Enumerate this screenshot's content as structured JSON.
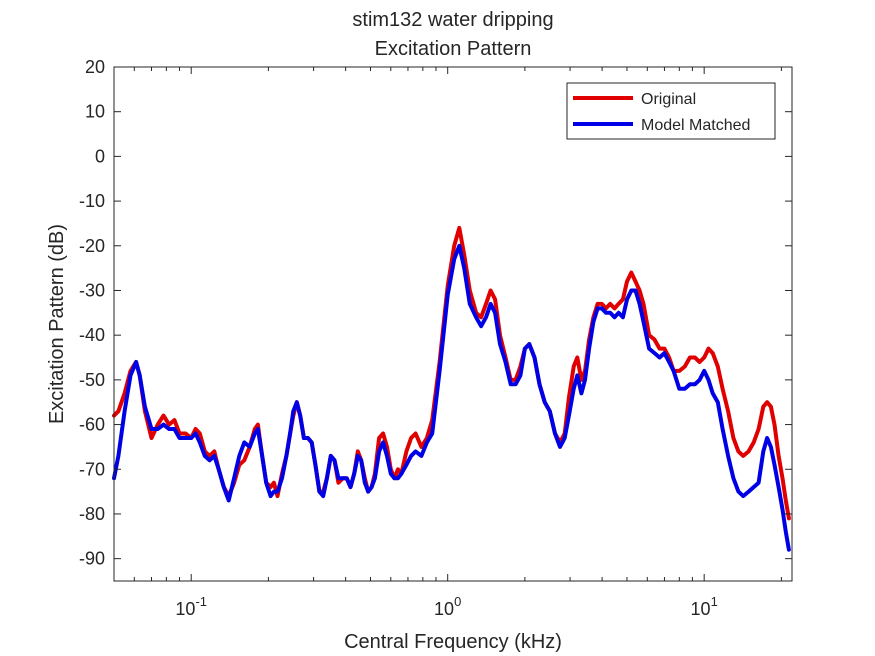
{
  "chart_data": {
    "type": "line",
    "title": "stim132 water dripping",
    "subtitle": "Excitation Pattern",
    "xlabel": "Central Frequency (kHz)",
    "ylabel": "Excitation Pattern (dB)",
    "xscale": "log",
    "xlim": [
      0.05,
      22
    ],
    "ylim": [
      -95,
      20
    ],
    "yticks": [
      20,
      10,
      0,
      -10,
      -20,
      -30,
      -40,
      -50,
      -60,
      -70,
      -80,
      -90
    ],
    "ytick_labels": [
      "20",
      "10",
      "0",
      "-10",
      "-20",
      "-30",
      "-40",
      "-50",
      "-60",
      "-70",
      "-80",
      "-90"
    ],
    "xticks": [
      0.1,
      1,
      10
    ],
    "xtick_base": "10",
    "xtick_exponents": [
      "-1",
      "0",
      "1"
    ],
    "grid": false,
    "legend_position": "top-right",
    "series": [
      {
        "name": "Original",
        "color": "#e00000",
        "points": [
          [
            0.05,
            -58
          ],
          [
            0.052,
            -57
          ],
          [
            0.055,
            -53
          ],
          [
            0.058,
            -48
          ],
          [
            0.061,
            -46
          ],
          [
            0.063,
            -49
          ],
          [
            0.066,
            -57
          ],
          [
            0.07,
            -63
          ],
          [
            0.074,
            -60
          ],
          [
            0.078,
            -58
          ],
          [
            0.082,
            -60
          ],
          [
            0.086,
            -59
          ],
          [
            0.09,
            -62
          ],
          [
            0.095,
            -62
          ],
          [
            0.1,
            -63
          ],
          [
            0.104,
            -61
          ],
          [
            0.108,
            -62
          ],
          [
            0.113,
            -66
          ],
          [
            0.118,
            -67
          ],
          [
            0.123,
            -66
          ],
          [
            0.128,
            -70
          ],
          [
            0.134,
            -74
          ],
          [
            0.14,
            -76
          ],
          [
            0.147,
            -73
          ],
          [
            0.154,
            -69
          ],
          [
            0.161,
            -68
          ],
          [
            0.169,
            -65
          ],
          [
            0.177,
            -61
          ],
          [
            0.182,
            -60
          ],
          [
            0.188,
            -66
          ],
          [
            0.196,
            -73
          ],
          [
            0.204,
            -74
          ],
          [
            0.21,
            -73
          ],
          [
            0.217,
            -76
          ],
          [
            0.226,
            -71
          ],
          [
            0.235,
            -67
          ],
          [
            0.243,
            -62
          ],
          [
            0.25,
            -58
          ],
          [
            0.258,
            -55
          ],
          [
            0.266,
            -58
          ],
          [
            0.275,
            -63
          ],
          [
            0.285,
            -63
          ],
          [
            0.295,
            -64
          ],
          [
            0.305,
            -69
          ],
          [
            0.316,
            -75
          ],
          [
            0.327,
            -75
          ],
          [
            0.338,
            -72
          ],
          [
            0.35,
            -67
          ],
          [
            0.362,
            -68
          ],
          [
            0.375,
            -73
          ],
          [
            0.39,
            -72
          ],
          [
            0.404,
            -72
          ],
          [
            0.418,
            -74
          ],
          [
            0.432,
            -71
          ],
          [
            0.446,
            -66
          ],
          [
            0.46,
            -68
          ],
          [
            0.475,
            -72
          ],
          [
            0.49,
            -75
          ],
          [
            0.505,
            -74
          ],
          [
            0.52,
            -71
          ],
          [
            0.54,
            -63
          ],
          [
            0.56,
            -62
          ],
          [
            0.58,
            -65
          ],
          [
            0.6,
            -70
          ],
          [
            0.62,
            -72
          ],
          [
            0.64,
            -70
          ],
          [
            0.66,
            -71
          ],
          [
            0.69,
            -66
          ],
          [
            0.72,
            -63
          ],
          [
            0.75,
            -62
          ],
          [
            0.79,
            -65
          ],
          [
            0.83,
            -63
          ],
          [
            0.87,
            -59
          ],
          [
            0.93,
            -46
          ],
          [
            1.0,
            -29
          ],
          [
            1.06,
            -20
          ],
          [
            1.11,
            -16
          ],
          [
            1.16,
            -22
          ],
          [
            1.22,
            -30
          ],
          [
            1.29,
            -35
          ],
          [
            1.35,
            -36
          ],
          [
            1.41,
            -33
          ],
          [
            1.47,
            -30
          ],
          [
            1.53,
            -32
          ],
          [
            1.6,
            -40
          ],
          [
            1.68,
            -45
          ],
          [
            1.76,
            -50
          ],
          [
            1.84,
            -50
          ],
          [
            1.92,
            -47
          ],
          [
            2.0,
            -43
          ],
          [
            2.08,
            -42
          ],
          [
            2.18,
            -45
          ],
          [
            2.28,
            -51
          ],
          [
            2.39,
            -55
          ],
          [
            2.5,
            -57
          ],
          [
            2.62,
            -62
          ],
          [
            2.74,
            -64
          ],
          [
            2.86,
            -62
          ],
          [
            2.97,
            -54
          ],
          [
            3.1,
            -47
          ],
          [
            3.2,
            -45
          ],
          [
            3.32,
            -50
          ],
          [
            3.43,
            -48
          ],
          [
            3.56,
            -41
          ],
          [
            3.7,
            -36
          ],
          [
            3.84,
            -33
          ],
          [
            3.99,
            -33
          ],
          [
            4.14,
            -34
          ],
          [
            4.3,
            -33
          ],
          [
            4.47,
            -34
          ],
          [
            4.64,
            -33
          ],
          [
            4.82,
            -32
          ],
          [
            5.0,
            -28
          ],
          [
            5.2,
            -26
          ],
          [
            5.4,
            -28
          ],
          [
            5.6,
            -30
          ],
          [
            5.8,
            -33
          ],
          [
            6.1,
            -40
          ],
          [
            6.4,
            -41
          ],
          [
            6.7,
            -43
          ],
          [
            7.0,
            -43
          ],
          [
            7.3,
            -45
          ],
          [
            7.6,
            -48
          ],
          [
            8.0,
            -48
          ],
          [
            8.4,
            -47
          ],
          [
            8.8,
            -45
          ],
          [
            9.2,
            -45
          ],
          [
            9.6,
            -46
          ],
          [
            10.0,
            -45
          ],
          [
            10.4,
            -43
          ],
          [
            10.8,
            -44
          ],
          [
            11.3,
            -47
          ],
          [
            11.8,
            -52
          ],
          [
            12.4,
            -57
          ],
          [
            13.0,
            -63
          ],
          [
            13.6,
            -66
          ],
          [
            14.2,
            -67
          ],
          [
            14.9,
            -66
          ],
          [
            15.6,
            -64
          ],
          [
            16.3,
            -61
          ],
          [
            17.0,
            -56
          ],
          [
            17.6,
            -55
          ],
          [
            18.2,
            -56
          ],
          [
            18.8,
            -60
          ],
          [
            19.5,
            -67
          ],
          [
            20.2,
            -72
          ],
          [
            20.8,
            -77
          ],
          [
            21.4,
            -81
          ]
        ]
      },
      {
        "name": "Model Matched",
        "color": "#0000e6",
        "points": [
          [
            0.05,
            -72
          ],
          [
            0.052,
            -67
          ],
          [
            0.055,
            -57
          ],
          [
            0.058,
            -49
          ],
          [
            0.061,
            -46
          ],
          [
            0.063,
            -49
          ],
          [
            0.066,
            -56
          ],
          [
            0.07,
            -61
          ],
          [
            0.074,
            -61
          ],
          [
            0.078,
            -60
          ],
          [
            0.082,
            -61
          ],
          [
            0.086,
            -61
          ],
          [
            0.09,
            -63
          ],
          [
            0.095,
            -63
          ],
          [
            0.1,
            -63
          ],
          [
            0.104,
            -62
          ],
          [
            0.108,
            -64
          ],
          [
            0.113,
            -67
          ],
          [
            0.118,
            -68
          ],
          [
            0.123,
            -67
          ],
          [
            0.128,
            -70
          ],
          [
            0.134,
            -74
          ],
          [
            0.14,
            -77
          ],
          [
            0.147,
            -72
          ],
          [
            0.154,
            -67
          ],
          [
            0.161,
            -64
          ],
          [
            0.169,
            -65
          ],
          [
            0.177,
            -62
          ],
          [
            0.182,
            -61
          ],
          [
            0.188,
            -66
          ],
          [
            0.196,
            -73
          ],
          [
            0.204,
            -76
          ],
          [
            0.21,
            -75
          ],
          [
            0.217,
            -75
          ],
          [
            0.226,
            -72
          ],
          [
            0.235,
            -67
          ],
          [
            0.243,
            -62
          ],
          [
            0.25,
            -57
          ],
          [
            0.258,
            -55
          ],
          [
            0.266,
            -58
          ],
          [
            0.275,
            -63
          ],
          [
            0.285,
            -63
          ],
          [
            0.295,
            -64
          ],
          [
            0.305,
            -69
          ],
          [
            0.316,
            -75
          ],
          [
            0.327,
            -76
          ],
          [
            0.338,
            -72
          ],
          [
            0.35,
            -67
          ],
          [
            0.362,
            -68
          ],
          [
            0.375,
            -72
          ],
          [
            0.39,
            -72
          ],
          [
            0.404,
            -72
          ],
          [
            0.418,
            -74
          ],
          [
            0.432,
            -71
          ],
          [
            0.446,
            -67
          ],
          [
            0.46,
            -68
          ],
          [
            0.475,
            -73
          ],
          [
            0.49,
            -75
          ],
          [
            0.505,
            -74
          ],
          [
            0.52,
            -72
          ],
          [
            0.54,
            -66
          ],
          [
            0.56,
            -64
          ],
          [
            0.58,
            -67
          ],
          [
            0.6,
            -71
          ],
          [
            0.62,
            -72
          ],
          [
            0.64,
            -72
          ],
          [
            0.66,
            -71
          ],
          [
            0.69,
            -69
          ],
          [
            0.72,
            -67
          ],
          [
            0.75,
            -66
          ],
          [
            0.79,
            -67
          ],
          [
            0.83,
            -64
          ],
          [
            0.87,
            -62
          ],
          [
            0.93,
            -48
          ],
          [
            1.0,
            -31
          ],
          [
            1.06,
            -23
          ],
          [
            1.11,
            -20
          ],
          [
            1.16,
            -25
          ],
          [
            1.22,
            -33
          ],
          [
            1.29,
            -36
          ],
          [
            1.35,
            -38
          ],
          [
            1.41,
            -36
          ],
          [
            1.47,
            -33
          ],
          [
            1.53,
            -35
          ],
          [
            1.6,
            -42
          ],
          [
            1.68,
            -46
          ],
          [
            1.76,
            -51
          ],
          [
            1.84,
            -51
          ],
          [
            1.92,
            -49
          ],
          [
            2.0,
            -43
          ],
          [
            2.08,
            -42
          ],
          [
            2.18,
            -45
          ],
          [
            2.28,
            -51
          ],
          [
            2.39,
            -55
          ],
          [
            2.5,
            -57
          ],
          [
            2.62,
            -62
          ],
          [
            2.74,
            -65
          ],
          [
            2.86,
            -63
          ],
          [
            2.97,
            -58
          ],
          [
            3.1,
            -52
          ],
          [
            3.2,
            -49
          ],
          [
            3.32,
            -53
          ],
          [
            3.43,
            -50
          ],
          [
            3.56,
            -43
          ],
          [
            3.7,
            -37
          ],
          [
            3.84,
            -34
          ],
          [
            3.99,
            -34
          ],
          [
            4.14,
            -35
          ],
          [
            4.3,
            -35
          ],
          [
            4.47,
            -36
          ],
          [
            4.64,
            -35
          ],
          [
            4.82,
            -36
          ],
          [
            5.0,
            -32
          ],
          [
            5.2,
            -30
          ],
          [
            5.4,
            -30
          ],
          [
            5.6,
            -33
          ],
          [
            5.8,
            -37
          ],
          [
            6.1,
            -43
          ],
          [
            6.4,
            -44
          ],
          [
            6.7,
            -45
          ],
          [
            7.0,
            -44
          ],
          [
            7.3,
            -46
          ],
          [
            7.6,
            -48
          ],
          [
            8.0,
            -52
          ],
          [
            8.4,
            -52
          ],
          [
            8.8,
            -51
          ],
          [
            9.2,
            -51
          ],
          [
            9.6,
            -50
          ],
          [
            10.0,
            -48
          ],
          [
            10.4,
            -50
          ],
          [
            10.8,
            -53
          ],
          [
            11.3,
            -55
          ],
          [
            11.8,
            -61
          ],
          [
            12.4,
            -67
          ],
          [
            13.0,
            -72
          ],
          [
            13.6,
            -75
          ],
          [
            14.2,
            -76
          ],
          [
            14.9,
            -75
          ],
          [
            15.6,
            -74
          ],
          [
            16.3,
            -73
          ],
          [
            17.0,
            -66
          ],
          [
            17.6,
            -63
          ],
          [
            18.2,
            -65
          ],
          [
            18.8,
            -69
          ],
          [
            19.5,
            -74
          ],
          [
            20.2,
            -79
          ],
          [
            20.8,
            -84
          ],
          [
            21.4,
            -88
          ]
        ]
      }
    ]
  }
}
